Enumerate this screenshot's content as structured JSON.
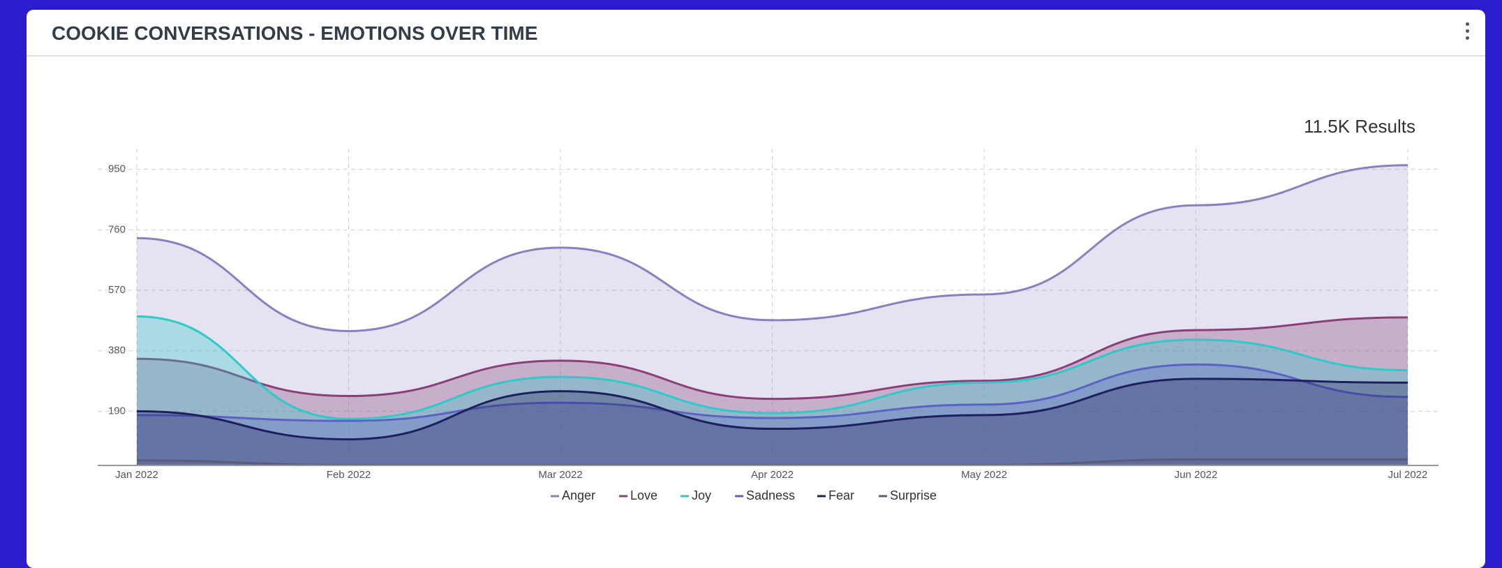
{
  "chart_data": {
    "type": "area",
    "title": "COOKIE CONVERSATIONS - EMOTIONS OVER TIME",
    "annotation": "11.5K Results",
    "categories": [
      "Jan 2022",
      "Feb 2022",
      "Mar 2022",
      "Apr 2022",
      "May 2022",
      "Jun 2022",
      "Jul 2022"
    ],
    "series": [
      {
        "name": "Anger",
        "color": "#8a7fbf",
        "values": [
          734,
          442,
          704,
          476,
          557,
          837,
          963
        ]
      },
      {
        "name": "Love",
        "color": "#8a3f78",
        "values": [
          355,
          238,
          349,
          229,
          286,
          445,
          485
        ]
      },
      {
        "name": "Joy",
        "color": "#2ec9c9",
        "values": [
          488,
          166,
          298,
          184,
          280,
          415,
          319
        ]
      },
      {
        "name": "Sadness",
        "color": "#5c62c4",
        "values": [
          178,
          160,
          217,
          169,
          211,
          337,
          235
        ]
      },
      {
        "name": "Fear",
        "color": "#1f1f5e",
        "values": [
          190,
          102,
          253,
          135,
          178,
          292,
          280
        ]
      },
      {
        "name": "Surprise",
        "color": "#5b5b7a",
        "values": [
          36,
          21,
          21,
          21,
          21,
          39,
          39
        ]
      }
    ],
    "ylim": [
      20,
      1015
    ],
    "yticks": [
      190,
      380,
      570,
      760,
      950
    ],
    "grid": true,
    "legend": "bottom"
  }
}
